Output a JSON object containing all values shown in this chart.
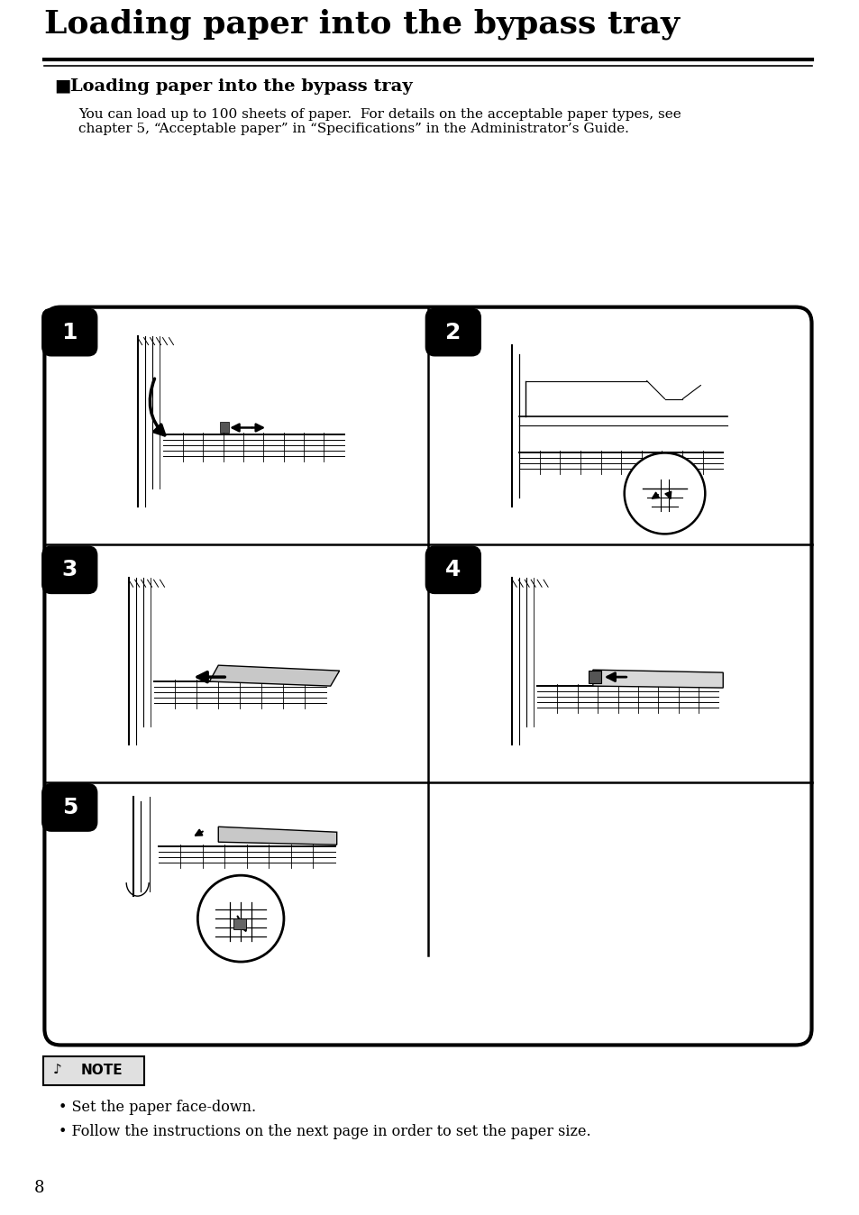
{
  "title": "Loading paper into the bypass tray",
  "section_title": "Loading paper into the bypass tray",
  "body_text_1": "You can load up to 100 sheets of paper.  For details on the acceptable paper types, see",
  "body_text_2": "chapter 5, “Acceptable paper” in “Specifications” in the Administrator’s Guide.",
  "note_bullets": [
    "Set the paper face-down.",
    "Follow the instructions on the next page in order to set the paper size."
  ],
  "page_number": "8",
  "step_labels": [
    "1",
    "2",
    "3",
    "4",
    "5"
  ],
  "bg_color": "#ffffff",
  "box_color": "#000000",
  "step_label_bg": "#000000",
  "step_label_fg": "#ffffff"
}
